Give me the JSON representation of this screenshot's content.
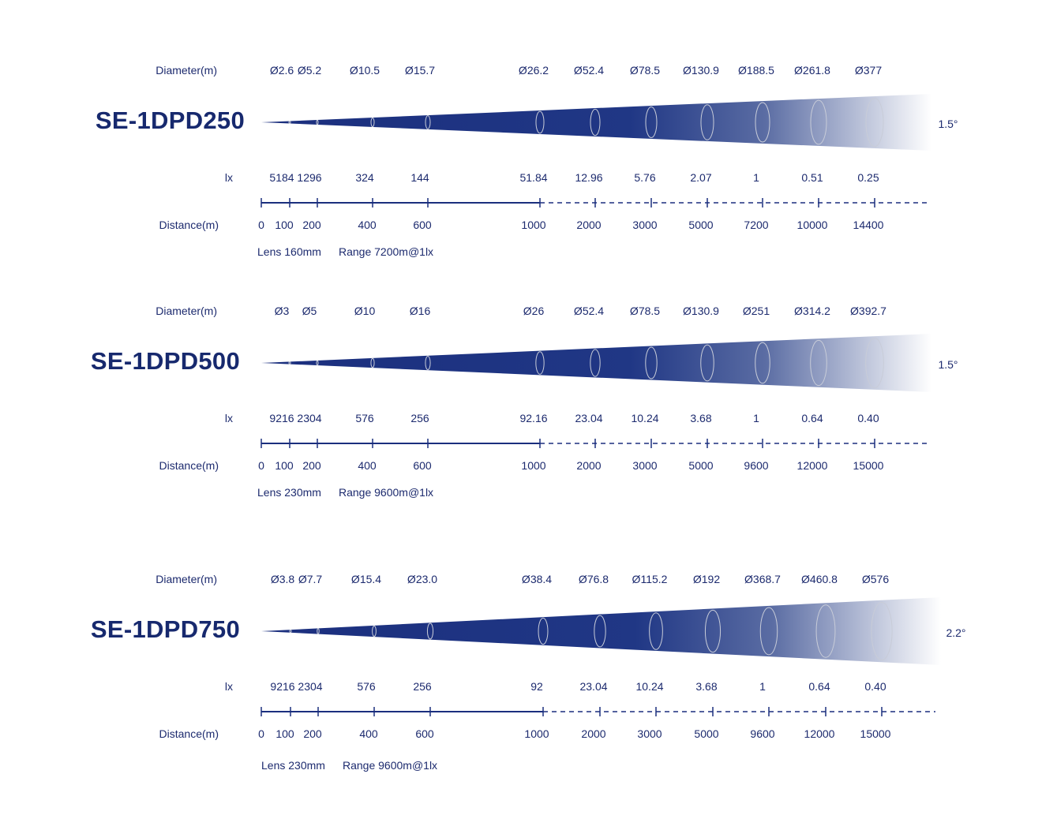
{
  "colors": {
    "beam": "#1b2f7e",
    "text": "#1c2a6e",
    "ring": "#c8ccd8"
  },
  "labels": {
    "diameter": "Diameter(m)",
    "lux": "lx",
    "distance": "Distance(m)"
  },
  "sections": [
    {
      "model": "SE-1DPD250",
      "beam_angle": "1.5°",
      "diameters": [
        "Ø2.6",
        "Ø5.2",
        "Ø10.5",
        "Ø15.7",
        "Ø26.2",
        "Ø52.4",
        "Ø78.5",
        "Ø130.9",
        "Ø188.5",
        "Ø261.8",
        "Ø377"
      ],
      "lux": [
        "5184",
        "1296",
        "324",
        "144",
        "51.84",
        "12.96",
        "5.76",
        "2.07",
        "1",
        "0.51",
        "0.25"
      ],
      "distances": [
        "0",
        "100",
        "200",
        "400",
        "600",
        "1000",
        "2000",
        "3000",
        "5000",
        "7200",
        "10000",
        "14400"
      ],
      "lens": "Lens 160mm",
      "range": "Range 7200m@1lx"
    },
    {
      "model": "SE-1DPD500",
      "beam_angle": "1.5°",
      "diameters": [
        "Ø3",
        "Ø5",
        "Ø10",
        "Ø16",
        "Ø26",
        "Ø52.4",
        "Ø78.5",
        "Ø130.9",
        "Ø251",
        "Ø314.2",
        "Ø392.7"
      ],
      "lux": [
        "9216",
        "2304",
        "576",
        "256",
        "92.16",
        "23.04",
        "10.24",
        "3.68",
        "1",
        "0.64",
        "0.40"
      ],
      "distances": [
        "0",
        "100",
        "200",
        "400",
        "600",
        "1000",
        "2000",
        "3000",
        "5000",
        "9600",
        "12000",
        "15000"
      ],
      "lens": "Lens 230mm",
      "range": "Range 9600m@1lx"
    },
    {
      "model": "SE-1DPD750",
      "beam_angle": "2.2°",
      "diameters": [
        "Ø3.8",
        "Ø7.7",
        "Ø15.4",
        "Ø23.0",
        "Ø38.4",
        "Ø76.8",
        "Ø115.2",
        "Ø192",
        "Ø368.7",
        "Ø460.8",
        "Ø576"
      ],
      "lux": [
        "9216",
        "2304",
        "576",
        "256",
        "92",
        "23.04",
        "10.24",
        "3.68",
        "1",
        "0.64",
        "0.40"
      ],
      "distances": [
        "0",
        "100",
        "200",
        "400",
        "600",
        "1000",
        "2000",
        "3000",
        "5000",
        "9600",
        "12000",
        "15000"
      ],
      "lens": "Lens 230mm",
      "range": "Range 9600m@1lx"
    }
  ]
}
